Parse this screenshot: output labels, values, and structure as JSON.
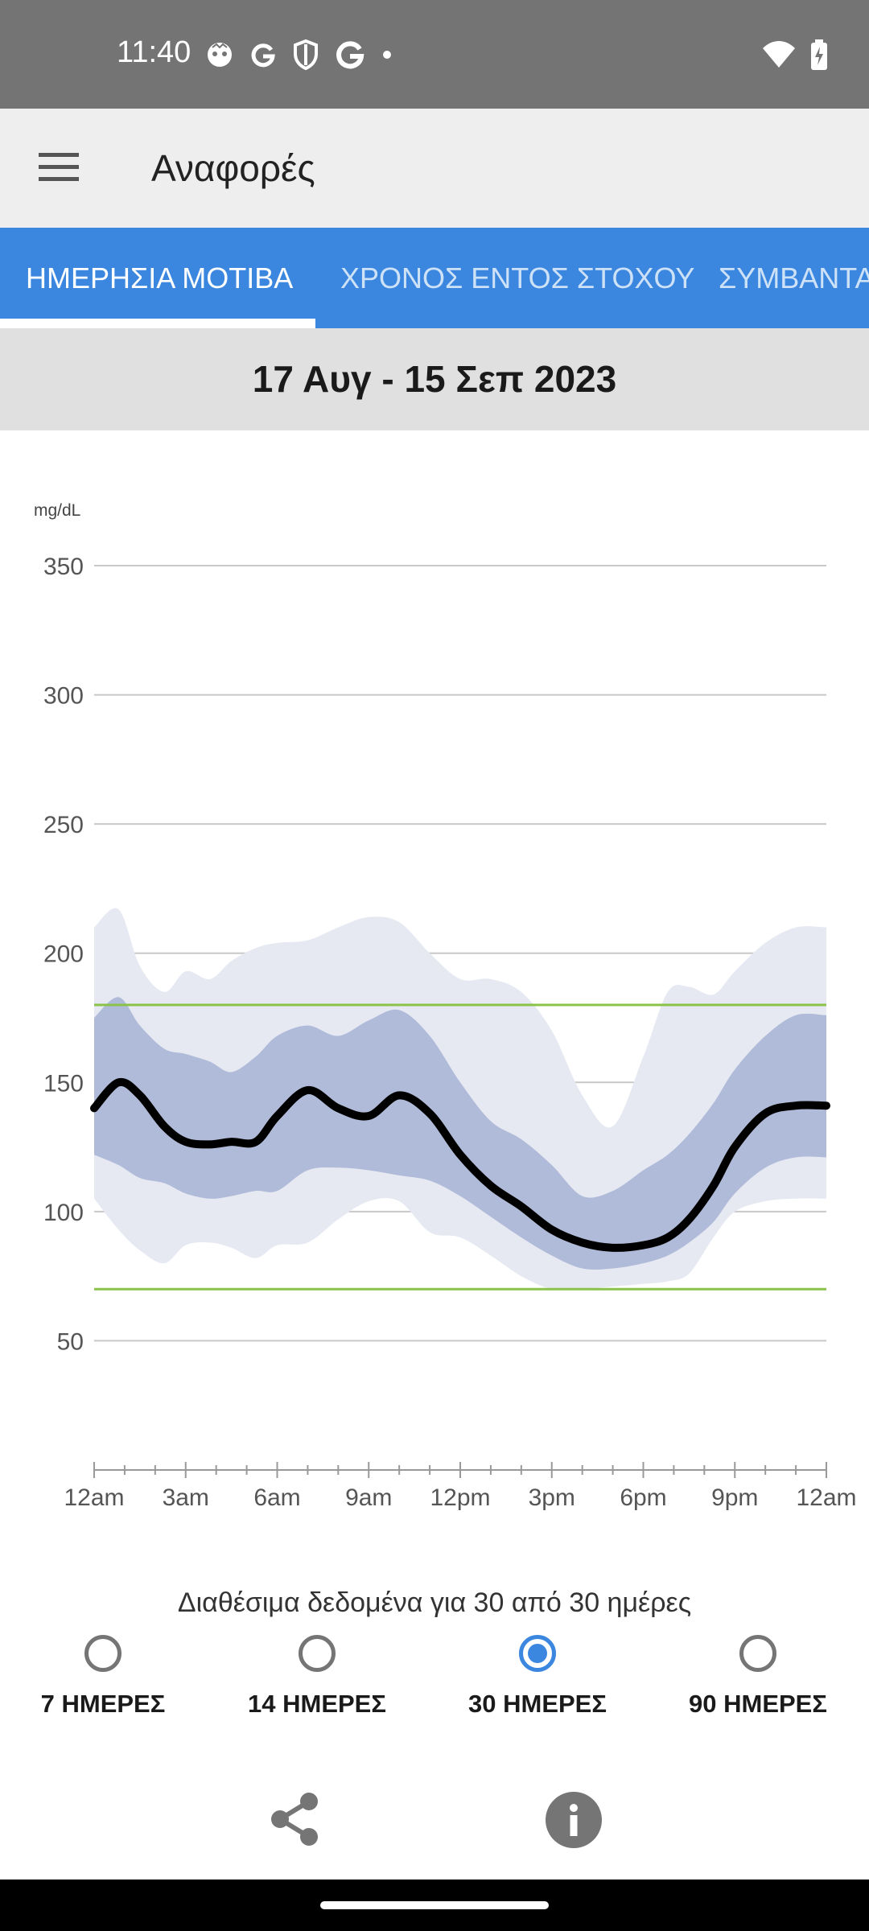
{
  "status_bar": {
    "time": "11:40"
  },
  "app_bar": {
    "title": "Αναφορές"
  },
  "tabs": [
    {
      "label": "ΗΜΕΡΗΣΙΑ ΜΟΤΙΒΑ",
      "active": true
    },
    {
      "label": "ΧΡΟΝΟΣ ΕΝΤΟΣ ΣΤΟΧΟΥ",
      "active": false
    },
    {
      "label": "ΣΥΜΒΑΝΤΑ",
      "active": false
    }
  ],
  "date_range": "17 Αυγ - 15 Σεπ 2023",
  "availability_text": "Διαθέσιμα δεδομένα για 30 από 30 ημέρες",
  "period_options": [
    {
      "label": "7 ΗΜΕΡΕΣ",
      "selected": false
    },
    {
      "label": "14 ΗΜΕΡΕΣ",
      "selected": false
    },
    {
      "label": "30 ΗΜΕΡΕΣ",
      "selected": true
    },
    {
      "label": "90 ΗΜΕΡΕΣ",
      "selected": false
    }
  ],
  "colors": {
    "accent": "#3b87e0",
    "median_line": "#000000",
    "iqr_band": "#b0bbd9",
    "outer_band": "#e6e9f2",
    "target_line": "#8bc34a",
    "grid": "#c8c8c8"
  },
  "chart_data": {
    "type": "area",
    "title": "",
    "ylabel": "mg/dL",
    "xlabel": "",
    "ylim": [
      0,
      350
    ],
    "xlim": [
      0,
      24
    ],
    "yticks": [
      50,
      100,
      150,
      200,
      250,
      300,
      350
    ],
    "xticks": [
      {
        "value": 0,
        "label": "12am"
      },
      {
        "value": 3,
        "label": "3am"
      },
      {
        "value": 6,
        "label": "6am"
      },
      {
        "value": 9,
        "label": "9am"
      },
      {
        "value": 12,
        "label": "12pm"
      },
      {
        "value": 15,
        "label": "3pm"
      },
      {
        "value": 18,
        "label": "6pm"
      },
      {
        "value": 21,
        "label": "9pm"
      },
      {
        "value": 24,
        "label": "12am"
      }
    ],
    "target_range": [
      70,
      180
    ],
    "x": [
      0,
      0.8,
      1.5,
      2.3,
      3,
      3.8,
      4.5,
      5.3,
      6,
      7,
      8,
      9,
      10,
      11,
      12,
      13,
      14,
      15,
      16,
      17,
      18,
      18.8,
      19.5,
      20.3,
      21,
      22,
      23,
      24
    ],
    "series": [
      {
        "name": "p95",
        "values": [
          210,
          217,
          195,
          185,
          193,
          190,
          197,
          202,
          204,
          205,
          210,
          214,
          212,
          200,
          190,
          190,
          185,
          170,
          145,
          133,
          160,
          185,
          187,
          184,
          193,
          204,
          210,
          210
        ]
      },
      {
        "name": "p75",
        "values": [
          175,
          183,
          172,
          163,
          161,
          158,
          154,
          160,
          168,
          172,
          168,
          174,
          178,
          168,
          150,
          135,
          128,
          118,
          106,
          108,
          116,
          122,
          130,
          142,
          155,
          168,
          176,
          176
        ]
      },
      {
        "name": "median",
        "values": [
          140,
          150,
          145,
          133,
          127,
          126,
          127,
          127,
          137,
          147,
          140,
          137,
          145,
          138,
          122,
          110,
          102,
          93,
          88,
          86,
          87,
          90,
          97,
          110,
          125,
          138,
          141,
          141
        ]
      },
      {
        "name": "p25",
        "values": [
          122,
          118,
          113,
          111,
          107,
          105,
          106,
          108,
          108,
          116,
          117,
          116,
          114,
          112,
          106,
          98,
          90,
          83,
          78,
          78,
          80,
          83,
          88,
          96,
          107,
          117,
          121,
          121
        ]
      },
      {
        "name": "p5",
        "values": [
          105,
          93,
          85,
          80,
          87,
          88,
          86,
          82,
          87,
          88,
          97,
          104,
          104,
          92,
          90,
          83,
          75,
          70,
          70,
          71,
          72,
          73,
          76,
          90,
          100,
          104,
          105,
          105
        ]
      }
    ]
  }
}
